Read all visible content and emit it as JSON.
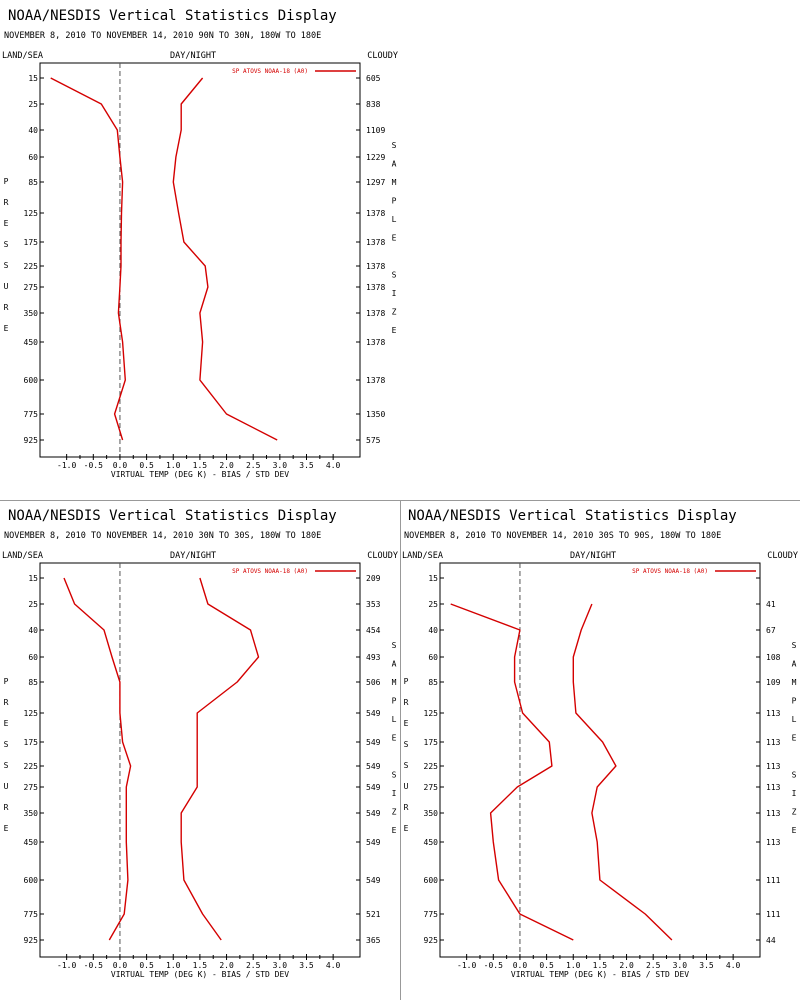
{
  "colors": {
    "series": "#d40000",
    "axis": "#000000",
    "zero_line": "#777777"
  },
  "chart_data": [
    {
      "type": "line",
      "title": "NOAA/NESDIS Vertical Statistics Display",
      "subtitle": "NOVEMBER 8, 2010 TO NOVEMBER 14, 2010 90N TO 30N, 180W TO 180E",
      "left_header": "LAND/SEA",
      "center_header": "DAY/NIGHT",
      "right_header": "CLOUDY",
      "xlabel": "VIRTUAL TEMP (DEG K) - BIAS / STD DEV",
      "ylabel": "PRESSURE",
      "y2label": "SAMPLE SIZE",
      "legend": "SP ATOVS NOAA-18 (A0)",
      "legend_position": "top-right",
      "xlim": [
        -1.5,
        4.5
      ],
      "x_ticks": [
        "-1.0",
        "-0.5",
        "0.0",
        "0.5",
        "1.0",
        "1.5",
        "2.0",
        "2.5",
        "3.0",
        "3.5",
        "4.0"
      ],
      "pressure_levels": [
        "15",
        "25",
        "40",
        "60",
        "85",
        "125",
        "175",
        "225",
        "275",
        "350",
        "450",
        "600",
        "775",
        "925"
      ],
      "sample_size": [
        "605",
        "838",
        "1109",
        "1229",
        "1297",
        "1378",
        "1378",
        "1378",
        "1378",
        "1378",
        "1378",
        "1378",
        "1350",
        "575"
      ],
      "series": [
        {
          "label": "bias",
          "values": [
            -1.3,
            -0.35,
            -0.05,
            0.0,
            0.05,
            0.03,
            0.02,
            0.02,
            0.0,
            -0.03,
            0.05,
            0.1,
            -0.1,
            0.05
          ]
        },
        {
          "label": "std dev",
          "values": [
            1.55,
            1.15,
            1.15,
            1.05,
            1.0,
            1.1,
            1.2,
            1.6,
            1.65,
            1.5,
            1.55,
            1.5,
            2.0,
            2.95
          ]
        }
      ]
    },
    {
      "type": "line",
      "title": "NOAA/NESDIS Vertical Statistics Display",
      "subtitle": "NOVEMBER 8, 2010 TO NOVEMBER 14, 2010 30N TO 30S, 180W TO 180E",
      "left_header": "LAND/SEA",
      "center_header": "DAY/NIGHT",
      "right_header": "CLOUDY",
      "xlabel": "VIRTUAL TEMP (DEG K) - BIAS / STD DEV",
      "ylabel": "PRESSURE",
      "y2label": "SAMPLE SIZE",
      "legend": "SP ATOVS NOAA-18 (A0)",
      "legend_position": "top-right",
      "xlim": [
        -1.5,
        4.5
      ],
      "x_ticks": [
        "-1.0",
        "-0.5",
        "0.0",
        "0.5",
        "1.0",
        "1.5",
        "2.0",
        "2.5",
        "3.0",
        "3.5",
        "4.0"
      ],
      "pressure_levels": [
        "15",
        "25",
        "40",
        "60",
        "85",
        "125",
        "175",
        "225",
        "275",
        "350",
        "450",
        "600",
        "775",
        "925"
      ],
      "sample_size": [
        "209",
        "353",
        "454",
        "493",
        "506",
        "549",
        "549",
        "549",
        "549",
        "549",
        "549",
        "549",
        "521",
        "365"
      ],
      "series": [
        {
          "label": "bias",
          "values": [
            -1.05,
            -0.85,
            -0.3,
            -0.15,
            0.0,
            0.0,
            0.05,
            0.2,
            0.12,
            0.12,
            0.12,
            0.15,
            0.08,
            -0.2
          ]
        },
        {
          "label": "std dev",
          "values": [
            1.5,
            1.65,
            2.45,
            2.6,
            2.2,
            1.45,
            1.45,
            1.45,
            1.45,
            1.15,
            1.15,
            1.2,
            1.55,
            1.9
          ]
        }
      ]
    },
    {
      "type": "line",
      "title": "NOAA/NESDIS Vertical Statistics Display",
      "subtitle": "NOVEMBER 8, 2010 TO NOVEMBER 14, 2010 30S TO 90S, 180W TO 180E",
      "left_header": "LAND/SEA",
      "center_header": "DAY/NIGHT",
      "right_header": "CLOUDY",
      "xlabel": "VIRTUAL TEMP (DEG K) - BIAS / STD DEV",
      "ylabel": "PRESSURE",
      "y2label": "SAMPLE SIZE",
      "legend": "SP ATOVS NOAA-18 (A0)",
      "legend_position": "top-right",
      "xlim": [
        -1.5,
        4.5
      ],
      "x_ticks": [
        "-1.0",
        "-0.5",
        "0.0",
        "0.5",
        "1.0",
        "1.5",
        "2.0",
        "2.5",
        "3.0",
        "3.5",
        "4.0"
      ],
      "pressure_levels": [
        "15",
        "25",
        "40",
        "60",
        "85",
        "125",
        "175",
        "225",
        "275",
        "350",
        "450",
        "600",
        "775",
        "925"
      ],
      "sample_size": [
        "",
        "41",
        "67",
        "108",
        "109",
        "113",
        "113",
        "113",
        "113",
        "113",
        "113",
        "111",
        "111",
        "44"
      ],
      "series": [
        {
          "label": "bias",
          "values": [
            null,
            -1.3,
            0.0,
            -0.1,
            -0.1,
            0.05,
            0.55,
            0.6,
            -0.05,
            -0.55,
            -0.5,
            -0.4,
            0.0,
            1.0
          ]
        },
        {
          "label": "std dev",
          "values": [
            null,
            1.35,
            1.15,
            1.0,
            1.0,
            1.05,
            1.55,
            1.8,
            1.45,
            1.35,
            1.45,
            1.5,
            2.35,
            2.85
          ]
        }
      ]
    }
  ]
}
